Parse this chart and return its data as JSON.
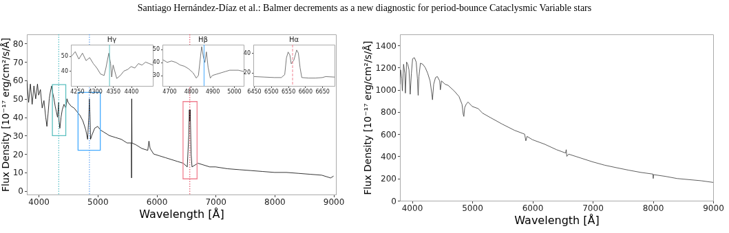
{
  "chart_data": [
    {
      "type": "line",
      "title": "Santiago Hernández-Díaz et al.:  Balmer decrements as a new diagnostic for period-bounce Cataclysmic Variable stars",
      "xlabel": "Wavelength [Å]",
      "ylabel": "Flux Density [10⁻¹⁷ erg/cm²/s/Å]",
      "xlim": [
        3800,
        9040
      ],
      "ylim": [
        -2,
        85
      ],
      "xticks": [
        4000,
        5000,
        6000,
        7000,
        8000,
        9000
      ],
      "yticks": [
        0,
        10,
        20,
        30,
        40,
        50,
        60,
        70,
        80
      ],
      "x": [
        3800,
        3830,
        3860,
        3890,
        3920,
        3950,
        3980,
        4000,
        4030,
        4060,
        4090,
        4120,
        4140,
        4160,
        4180,
        4200,
        4220,
        4240,
        4260,
        4280,
        4300,
        4320,
        4340,
        4345,
        4360,
        4380,
        4400,
        4430,
        4460,
        4480,
        4500,
        4550,
        4600,
        4650,
        4700,
        4750,
        4800,
        4830,
        4850,
        4860,
        4870,
        4880,
        4900,
        4950,
        5000,
        5050,
        5100,
        5200,
        5300,
        5400,
        5500,
        5572,
        5575,
        5578,
        5582,
        5650,
        5750,
        5850,
        5870,
        5890,
        5950,
        6050,
        6150,
        6250,
        6350,
        6450,
        6520,
        6545,
        6555,
        6563,
        6570,
        6585,
        6600,
        6650,
        6700,
        6800,
        6900,
        7000,
        7200,
        7400,
        7600,
        7800,
        8000,
        8200,
        8400,
        8600,
        8800,
        8950,
        9000
      ],
      "series": [
        {
          "color": "#000000",
          "values": [
            60,
            48,
            58,
            47,
            57,
            50,
            58,
            52,
            55,
            45,
            49,
            40,
            35,
            42,
            50,
            54,
            57,
            53,
            50,
            46,
            43,
            40,
            48,
            38,
            34,
            40,
            44,
            47,
            45,
            50,
            48,
            46,
            45,
            43,
            41,
            38,
            33,
            28,
            40,
            50,
            42,
            28,
            30,
            34,
            35,
            33,
            32,
            30,
            29,
            28,
            26,
            26,
            7,
            50,
            26,
            25,
            23,
            22,
            27,
            23,
            20,
            19,
            18,
            17,
            16,
            15,
            13,
            30,
            44,
            38,
            44,
            20,
            13,
            14,
            15,
            14,
            13,
            13,
            12,
            11.5,
            11,
            10.5,
            10,
            10,
            9.5,
            9,
            8.5,
            7,
            8
          ]
        }
      ],
      "ref_lines": [
        {
          "axis": "x",
          "value": 4340,
          "color": "#2ab0b8",
          "line_style": "dotted"
        },
        {
          "axis": "x",
          "value": 4861,
          "color": "#3d8ff0",
          "line_style": "dotted"
        },
        {
          "axis": "x",
          "value": 6563,
          "color": "#e0304a",
          "line_style": "dotted"
        }
      ]
    },
    {
      "type": "line",
      "title": "Hγ",
      "xlim": [
        4233,
        4460
      ],
      "ylim": [
        30,
        57.7
      ],
      "xticks": [
        4250,
        4300,
        4350,
        4400
      ],
      "yticks": [
        40,
        50
      ],
      "x": [
        4235,
        4245,
        4255,
        4265,
        4275,
        4285,
        4295,
        4305,
        4315,
        4325,
        4330,
        4338,
        4343,
        4346,
        4350,
        4360,
        4370,
        4380,
        4390,
        4400,
        4410,
        4420,
        4430,
        4440,
        4450,
        4460
      ],
      "series": [
        {
          "color": "#555555",
          "values": [
            50,
            53,
            48,
            52,
            47,
            49,
            45,
            42,
            38,
            37,
            42,
            52,
            45,
            36,
            44,
            35,
            37,
            40,
            41,
            43,
            42,
            45,
            44,
            46,
            45,
            44
          ]
        }
      ],
      "ref_lines": [
        {
          "axis": "x",
          "value": 4340,
          "color": "#5cc0c0",
          "line_style": "solid"
        }
      ]
    },
    {
      "type": "line",
      "title": "Hβ",
      "xlim": [
        4668,
        5045
      ],
      "ylim": [
        22,
        53.5
      ],
      "xticks": [
        4700,
        4800,
        4900,
        5000
      ],
      "yticks": [
        30,
        40,
        50
      ],
      "x": [
        4670,
        4690,
        4710,
        4730,
        4750,
        4770,
        4790,
        4810,
        4825,
        4835,
        4845,
        4850,
        4858,
        4865,
        4872,
        4880,
        4890,
        4900,
        4920,
        4940,
        4960,
        4980,
        5000,
        5020,
        5045
      ],
      "series": [
        {
          "color": "#555555",
          "values": [
            42,
            40,
            41,
            40,
            38,
            37,
            35,
            32,
            28,
            30,
            45,
            52,
            44,
            40,
            48,
            36,
            28,
            30,
            31,
            32,
            33,
            34,
            34,
            34,
            33
          ]
        }
      ],
      "ref_lines": [
        {
          "axis": "x",
          "value": 4861,
          "color": "#44aaff",
          "line_style": "solid"
        }
      ]
    },
    {
      "type": "line",
      "title": "Hα",
      "xlim": [
        6448,
        6686
      ],
      "ylim": [
        6.5,
        48.5
      ],
      "xticks": [
        6450,
        6500,
        6550,
        6600,
        6650
      ],
      "yticks": [
        20,
        40
      ],
      "x": [
        6450,
        6480,
        6510,
        6530,
        6540,
        6545,
        6550,
        6555,
        6559,
        6567,
        6575,
        6580,
        6585,
        6590,
        6610,
        6630,
        6650,
        6660,
        6686
      ],
      "series": [
        {
          "color": "#555555",
          "values": [
            16,
            15.5,
            15,
            15,
            18,
            35,
            41,
            38,
            29,
            33,
            43,
            40,
            25,
            15,
            14.5,
            14.5,
            15,
            16,
            15.5
          ]
        }
      ],
      "ref_lines": [
        {
          "axis": "x",
          "value": 6563,
          "color": "#f08090",
          "line_style": "dashed"
        }
      ]
    },
    {
      "type": "line",
      "xlabel": "Wavelength [Å]",
      "ylabel": "Flux Density [10⁻¹⁷ erg/cm²/s/Å]",
      "xlim": [
        3800,
        9000
      ],
      "ylim": [
        0,
        1500
      ],
      "xticks": [
        4000,
        5000,
        6000,
        7000,
        8000,
        9000
      ],
      "yticks": [
        0,
        200,
        400,
        600,
        800,
        1000,
        1200,
        1400
      ],
      "x": [
        3800,
        3810,
        3830,
        3840,
        3860,
        3880,
        3890,
        3910,
        3930,
        3950,
        3970,
        3990,
        4010,
        4040,
        4070,
        4090,
        4102,
        4115,
        4140,
        4180,
        4220,
        4260,
        4300,
        4330,
        4340,
        4360,
        4390,
        4420,
        4460,
        4471,
        4490,
        4550,
        4600,
        4700,
        4780,
        4830,
        4850,
        4861,
        4875,
        4900,
        4930,
        5000,
        5100,
        5170,
        5300,
        5500,
        5700,
        5870,
        5890,
        5910,
        6000,
        6200,
        6400,
        6550,
        6560,
        6570,
        6600,
        6800,
        7000,
        7200,
        7400,
        7600,
        7800,
        8000,
        8005,
        8010,
        8200,
        8400,
        8600,
        8800,
        9000
      ],
      "series": [
        {
          "color": "#333333",
          "values": [
            1050,
            1180,
            1100,
            990,
            1230,
            1150,
            970,
            1250,
            1230,
            1180,
            960,
            1150,
            1280,
            1290,
            1250,
            1100,
            950,
            1120,
            1240,
            1230,
            1200,
            1150,
            1080,
            960,
            910,
            1050,
            1110,
            1120,
            1080,
            1000,
            1080,
            1050,
            1040,
            990,
            940,
            870,
            780,
            760,
            840,
            870,
            890,
            850,
            830,
            790,
            750,
            690,
            635,
            600,
            540,
            580,
            550,
            510,
            460,
            430,
            460,
            400,
            420,
            385,
            350,
            320,
            297,
            275,
            255,
            240,
            200,
            235,
            220,
            200,
            190,
            180,
            165
          ]
        }
      ]
    }
  ]
}
